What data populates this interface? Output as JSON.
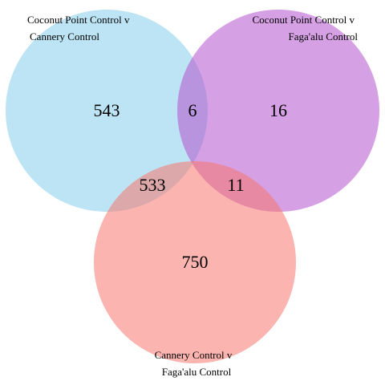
{
  "diagram": {
    "type": "venn-3",
    "sets": [
      {
        "id": "A",
        "label_lines": [
          "Coconut Point Control v",
          "Cannery Control"
        ],
        "color": "#87CEEB"
      },
      {
        "id": "B",
        "label_lines": [
          "Coconut Point Control v",
          "Faga'alu Control"
        ],
        "color": "#B452CD"
      },
      {
        "id": "C",
        "label_lines": [
          "Cannery Control v",
          "Faga'alu Control"
        ],
        "color": "#F8766D"
      }
    ],
    "regions": {
      "A_only": "543",
      "A_and_B": "6",
      "B_only": "16",
      "A_and_C": "533",
      "B_and_C": "11",
      "C_only": "750"
    }
  }
}
